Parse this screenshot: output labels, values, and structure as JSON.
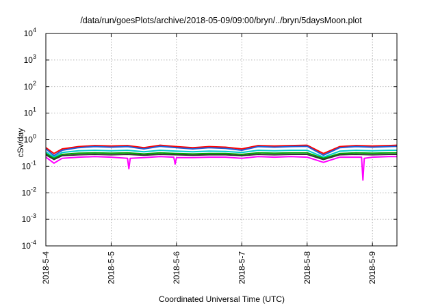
{
  "chart_data": {
    "type": "line",
    "title": "/data/run/goesPlots/archive/2018-05-09/09:00/bryn/../bryn/5daysMoon.plot",
    "xlabel": "Coordinated Universal Time (UTC)",
    "ylabel": "cSv/day",
    "yscale": "log",
    "ylim": [
      0.0001,
      10000
    ],
    "y_ticks": [
      {
        "base": "10",
        "exp": "-4",
        "value": 0.0001
      },
      {
        "base": "10",
        "exp": "-3",
        "value": 0.001
      },
      {
        "base": "10",
        "exp": "-2",
        "value": 0.01
      },
      {
        "base": "10",
        "exp": "-1",
        "value": 0.1
      },
      {
        "base": "10",
        "exp": "0",
        "value": 1
      },
      {
        "base": "10",
        "exp": "1",
        "value": 10
      },
      {
        "base": "10",
        "exp": "2",
        "value": 100
      },
      {
        "base": "10",
        "exp": "3",
        "value": 1000
      },
      {
        "base": "10",
        "exp": "4",
        "value": 10000
      }
    ],
    "xlim": [
      "2018-05-04",
      "2018-05-09 09:00"
    ],
    "x_ticks": [
      {
        "label": "2018-5-4",
        "value": "2018-05-04"
      },
      {
        "label": "2018-5-5",
        "value": "2018-05-05"
      },
      {
        "label": "2018-5-6",
        "value": "2018-05-06"
      },
      {
        "label": "2018-5-7",
        "value": "2018-05-07"
      },
      {
        "label": "2018-5-8",
        "value": "2018-05-08"
      },
      {
        "label": "2018-5-9",
        "value": "2018-05-09"
      }
    ],
    "grid": true,
    "series": [
      {
        "color": "#ff0000",
        "values": [
          [
            "2018-05-04 00:00",
            0.5
          ],
          [
            "2018-05-04 03:00",
            0.3
          ],
          [
            "2018-05-04 06:00",
            0.45
          ],
          [
            "2018-05-04 12:00",
            0.55
          ],
          [
            "2018-05-04 18:00",
            0.6
          ],
          [
            "2018-05-05 00:00",
            0.58
          ],
          [
            "2018-05-05 06:00",
            0.6
          ],
          [
            "2018-05-05 12:00",
            0.5
          ],
          [
            "2018-05-05 18:00",
            0.62
          ],
          [
            "2018-05-06 00:00",
            0.55
          ],
          [
            "2018-05-06 06:00",
            0.5
          ],
          [
            "2018-05-06 12:00",
            0.55
          ],
          [
            "2018-05-06 18:00",
            0.52
          ],
          [
            "2018-05-07 00:00",
            0.45
          ],
          [
            "2018-05-07 06:00",
            0.6
          ],
          [
            "2018-05-07 12:00",
            0.58
          ],
          [
            "2018-05-07 18:00",
            0.6
          ],
          [
            "2018-05-08 00:00",
            0.62
          ],
          [
            "2018-05-08 06:00",
            0.3
          ],
          [
            "2018-05-08 12:00",
            0.55
          ],
          [
            "2018-05-08 18:00",
            0.6
          ],
          [
            "2018-05-09 00:00",
            0.58
          ],
          [
            "2018-05-09 06:00",
            0.6
          ],
          [
            "2018-05-09 09:00",
            0.62
          ]
        ]
      },
      {
        "color": "#1f5fd8",
        "values": [
          [
            "2018-05-04 00:00",
            0.45
          ],
          [
            "2018-05-04 03:00",
            0.25
          ],
          [
            "2018-05-04 06:00",
            0.4
          ],
          [
            "2018-05-04 12:00",
            0.5
          ],
          [
            "2018-05-04 18:00",
            0.55
          ],
          [
            "2018-05-05 00:00",
            0.52
          ],
          [
            "2018-05-05 06:00",
            0.55
          ],
          [
            "2018-05-05 12:00",
            0.45
          ],
          [
            "2018-05-05 18:00",
            0.56
          ],
          [
            "2018-05-06 00:00",
            0.5
          ],
          [
            "2018-05-06 06:00",
            0.45
          ],
          [
            "2018-05-06 12:00",
            0.5
          ],
          [
            "2018-05-06 18:00",
            0.47
          ],
          [
            "2018-05-07 00:00",
            0.4
          ],
          [
            "2018-05-07 06:00",
            0.55
          ],
          [
            "2018-05-07 12:00",
            0.52
          ],
          [
            "2018-05-07 18:00",
            0.55
          ],
          [
            "2018-05-08 00:00",
            0.56
          ],
          [
            "2018-05-08 06:00",
            0.26
          ],
          [
            "2018-05-08 12:00",
            0.5
          ],
          [
            "2018-05-08 18:00",
            0.55
          ],
          [
            "2018-05-09 00:00",
            0.52
          ],
          [
            "2018-05-09 06:00",
            0.55
          ],
          [
            "2018-05-09 09:00",
            0.56
          ]
        ]
      },
      {
        "color": "#00cccc",
        "values": [
          [
            "2018-05-04 00:00",
            0.35
          ],
          [
            "2018-05-04 03:00",
            0.22
          ],
          [
            "2018-05-04 06:00",
            0.33
          ],
          [
            "2018-05-04 12:00",
            0.38
          ],
          [
            "2018-05-04 18:00",
            0.4
          ],
          [
            "2018-05-05 00:00",
            0.38
          ],
          [
            "2018-05-05 06:00",
            0.4
          ],
          [
            "2018-05-05 12:00",
            0.35
          ],
          [
            "2018-05-05 18:00",
            0.4
          ],
          [
            "2018-05-06 00:00",
            0.37
          ],
          [
            "2018-05-06 06:00",
            0.35
          ],
          [
            "2018-05-06 12:00",
            0.37
          ],
          [
            "2018-05-06 18:00",
            0.36
          ],
          [
            "2018-05-07 00:00",
            0.33
          ],
          [
            "2018-05-07 06:00",
            0.4
          ],
          [
            "2018-05-07 12:00",
            0.38
          ],
          [
            "2018-05-07 18:00",
            0.4
          ],
          [
            "2018-05-08 00:00",
            0.4
          ],
          [
            "2018-05-08 06:00",
            0.22
          ],
          [
            "2018-05-08 12:00",
            0.37
          ],
          [
            "2018-05-08 18:00",
            0.4
          ],
          [
            "2018-05-09 00:00",
            0.38
          ],
          [
            "2018-05-09 06:00",
            0.4
          ],
          [
            "2018-05-09 09:00",
            0.4
          ]
        ]
      },
      {
        "color": "#00aa00",
        "values": [
          [
            "2018-05-04 00:00",
            0.3
          ],
          [
            "2018-05-04 03:00",
            0.2
          ],
          [
            "2018-05-04 06:00",
            0.28
          ],
          [
            "2018-05-04 12:00",
            0.31
          ],
          [
            "2018-05-04 18:00",
            0.32
          ],
          [
            "2018-05-05 00:00",
            0.31
          ],
          [
            "2018-05-05 06:00",
            0.32
          ],
          [
            "2018-05-05 12:00",
            0.29
          ],
          [
            "2018-05-05 18:00",
            0.32
          ],
          [
            "2018-05-06 00:00",
            0.3
          ],
          [
            "2018-05-06 06:00",
            0.29
          ],
          [
            "2018-05-06 12:00",
            0.3
          ],
          [
            "2018-05-06 18:00",
            0.3
          ],
          [
            "2018-05-07 00:00",
            0.28
          ],
          [
            "2018-05-07 06:00",
            0.32
          ],
          [
            "2018-05-07 12:00",
            0.31
          ],
          [
            "2018-05-07 18:00",
            0.32
          ],
          [
            "2018-05-08 00:00",
            0.32
          ],
          [
            "2018-05-08 06:00",
            0.2
          ],
          [
            "2018-05-08 12:00",
            0.3
          ],
          [
            "2018-05-08 18:00",
            0.32
          ],
          [
            "2018-05-09 00:00",
            0.31
          ],
          [
            "2018-05-09 06:00",
            0.32
          ],
          [
            "2018-05-09 09:00",
            0.32
          ]
        ]
      },
      {
        "color": "#333333",
        "values": [
          [
            "2018-05-04 00:00",
            0.27
          ],
          [
            "2018-05-04 03:00",
            0.18
          ],
          [
            "2018-05-04 06:00",
            0.25
          ],
          [
            "2018-05-04 12:00",
            0.27
          ],
          [
            "2018-05-04 18:00",
            0.28
          ],
          [
            "2018-05-05 00:00",
            0.27
          ],
          [
            "2018-05-05 06:00",
            0.28
          ],
          [
            "2018-05-05 12:00",
            0.26
          ],
          [
            "2018-05-05 18:00",
            0.28
          ],
          [
            "2018-05-06 00:00",
            0.27
          ],
          [
            "2018-05-06 06:00",
            0.26
          ],
          [
            "2018-05-06 12:00",
            0.27
          ],
          [
            "2018-05-06 18:00",
            0.27
          ],
          [
            "2018-05-07 00:00",
            0.25
          ],
          [
            "2018-05-07 06:00",
            0.28
          ],
          [
            "2018-05-07 12:00",
            0.27
          ],
          [
            "2018-05-07 18:00",
            0.28
          ],
          [
            "2018-05-08 00:00",
            0.28
          ],
          [
            "2018-05-08 06:00",
            0.18
          ],
          [
            "2018-05-08 12:00",
            0.27
          ],
          [
            "2018-05-08 18:00",
            0.28
          ],
          [
            "2018-05-09 00:00",
            0.27
          ],
          [
            "2018-05-09 06:00",
            0.28
          ],
          [
            "2018-05-09 09:00",
            0.28
          ]
        ]
      },
      {
        "color": "#ff00ff",
        "values": [
          [
            "2018-05-04 00:00",
            0.22
          ],
          [
            "2018-05-04 03:00",
            0.13
          ],
          [
            "2018-05-04 06:00",
            0.2
          ],
          [
            "2018-05-04 12:00",
            0.22
          ],
          [
            "2018-05-04 18:00",
            0.23
          ],
          [
            "2018-05-05 00:00",
            0.22
          ],
          [
            "2018-05-05 06:00",
            0.2
          ],
          [
            "2018-05-05 06:30",
            0.08
          ],
          [
            "2018-05-05 07:00",
            0.2
          ],
          [
            "2018-05-05 12:00",
            0.21
          ],
          [
            "2018-05-05 18:00",
            0.23
          ],
          [
            "2018-05-05 23:00",
            0.22
          ],
          [
            "2018-05-05 23:30",
            0.12
          ],
          [
            "2018-05-06 00:00",
            0.21
          ],
          [
            "2018-05-06 06:00",
            0.21
          ],
          [
            "2018-05-06 12:00",
            0.22
          ],
          [
            "2018-05-06 18:00",
            0.22
          ],
          [
            "2018-05-07 00:00",
            0.2
          ],
          [
            "2018-05-07 06:00",
            0.23
          ],
          [
            "2018-05-07 12:00",
            0.22
          ],
          [
            "2018-05-07 18:00",
            0.23
          ],
          [
            "2018-05-08 00:00",
            0.22
          ],
          [
            "2018-05-08 06:00",
            0.14
          ],
          [
            "2018-05-08 12:00",
            0.22
          ],
          [
            "2018-05-08 18:00",
            0.22
          ],
          [
            "2018-05-08 20:00",
            0.22
          ],
          [
            "2018-05-08 20:30",
            0.03
          ],
          [
            "2018-05-08 21:00",
            0.2
          ],
          [
            "2018-05-09 00:00",
            0.22
          ],
          [
            "2018-05-09 06:00",
            0.23
          ],
          [
            "2018-05-09 09:00",
            0.23
          ]
        ]
      }
    ]
  }
}
